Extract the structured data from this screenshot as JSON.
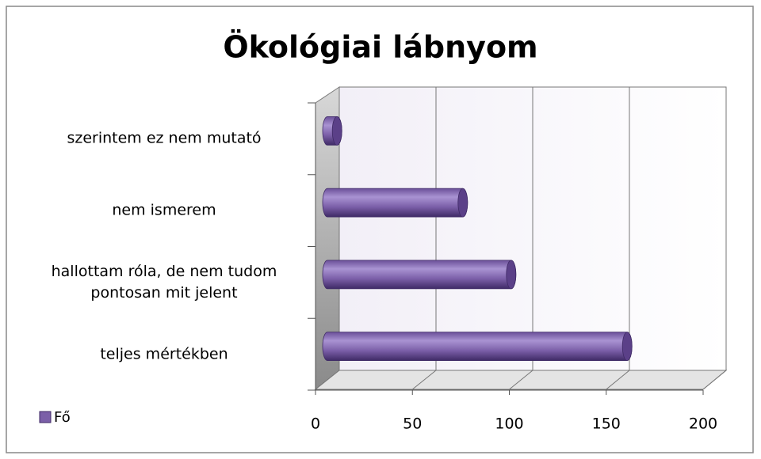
{
  "chart_data": {
    "type": "bar",
    "orientation": "horizontal",
    "title": "Ökológiai lábnyom",
    "categories": [
      "teljes mértékben",
      "hallottam róla, de nem tudom pontosan  mit jelent",
      "nem ismerem",
      "szerintem ez nem mutató"
    ],
    "series": [
      {
        "name": "Fő",
        "color": "#7b5fa8",
        "values": [
          155,
          95,
          70,
          5
        ]
      }
    ],
    "xlim": [
      0,
      200
    ],
    "xticks": [
      0,
      50,
      100,
      150,
      200
    ],
    "grid": true,
    "legend": "left"
  }
}
